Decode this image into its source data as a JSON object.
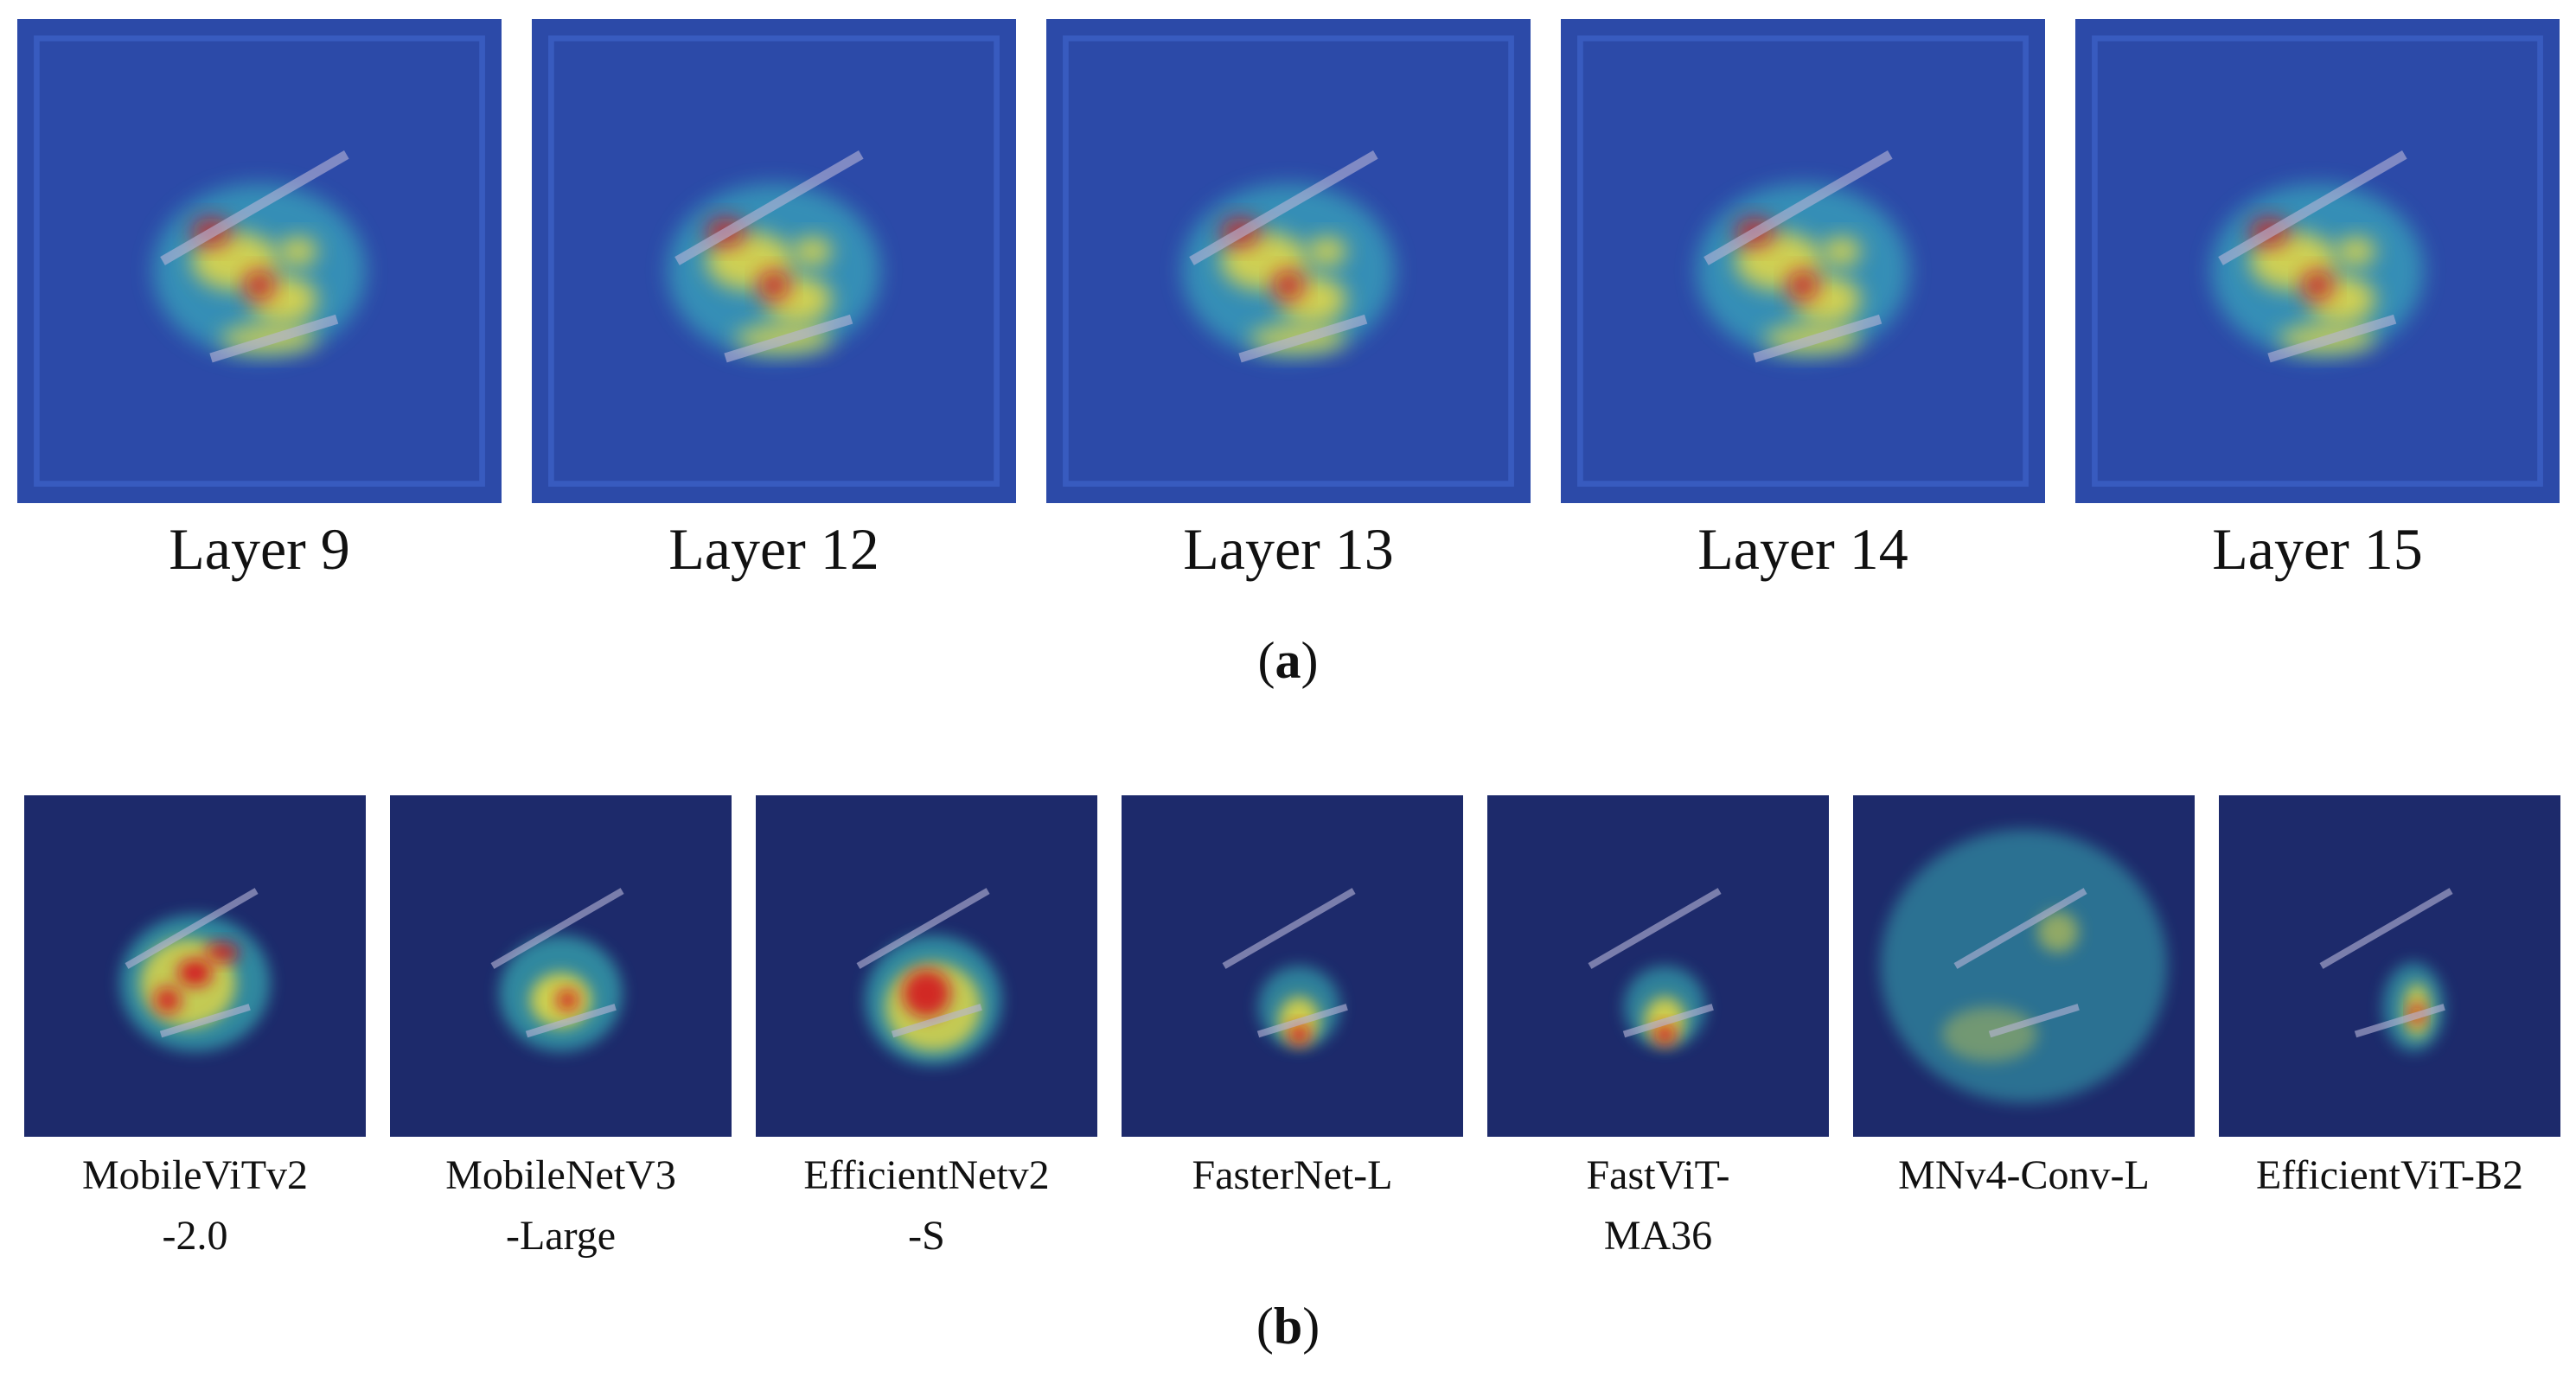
{
  "panel_a": {
    "tag_open": "(",
    "tag_letter": "a",
    "tag_close": ")",
    "tiles": [
      {
        "label": "Layer 9",
        "style": "frame"
      },
      {
        "label": "Layer 12",
        "style": "frame"
      },
      {
        "label": "Layer 13",
        "style": "frame"
      },
      {
        "label": "Layer 14",
        "style": "frame"
      },
      {
        "label": "Layer 15",
        "style": "frame"
      }
    ]
  },
  "panel_b": {
    "tag_open": "(",
    "tag_letter": "b",
    "tag_close": ")",
    "tiles": [
      {
        "label": "MobileViTv2\n-2.0",
        "style": "broad"
      },
      {
        "label": "MobileNetV3\n-Large",
        "style": "center"
      },
      {
        "label": "EfficientNetv2\n-S",
        "style": "blob"
      },
      {
        "label": "FasterNet-L",
        "style": "small"
      },
      {
        "label": "FastViT-\nMA36",
        "style": "small"
      },
      {
        "label": "MNv4-Conv-L",
        "style": "diffuse"
      },
      {
        "label": "EfficientViT-B2",
        "style": "narrow"
      }
    ]
  },
  "colors": {
    "background_dark": "#1d2a6b",
    "background_mid": "#2c4aa8",
    "hot": "#d4101a",
    "warm": "#f5e03a",
    "cool": "#3cc7c2"
  }
}
